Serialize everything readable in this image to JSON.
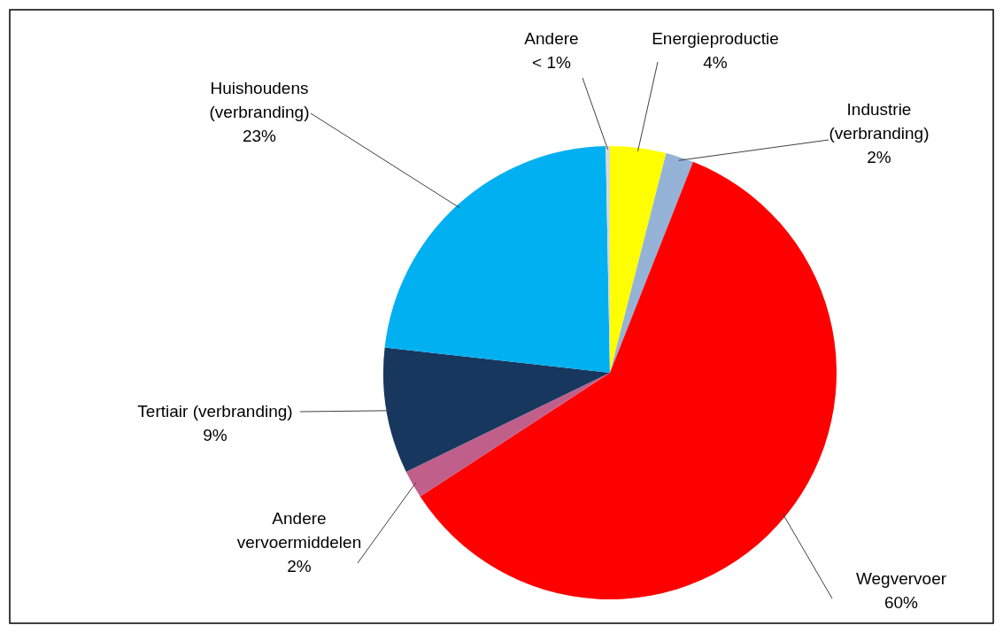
{
  "chart_data": {
    "type": "pie",
    "categories": [
      "Energieproductie",
      "Industrie (verbranding)",
      "Wegvervoer",
      "Andere vervoermiddelen",
      "Tertiair (verbranding)",
      "Huishoudens (verbranding)",
      "Andere"
    ],
    "values": [
      4,
      2,
      60,
      2,
      9,
      23,
      0.3
    ],
    "value_labels": [
      "4%",
      "2%",
      "60%",
      "2%",
      "9%",
      "23%",
      "< 1%"
    ],
    "colors": [
      "#ffff00",
      "#95b3d7",
      "#ff0000",
      "#c0608a",
      "#17375e",
      "#00b0f0",
      "#d9d9d9"
    ]
  }
}
